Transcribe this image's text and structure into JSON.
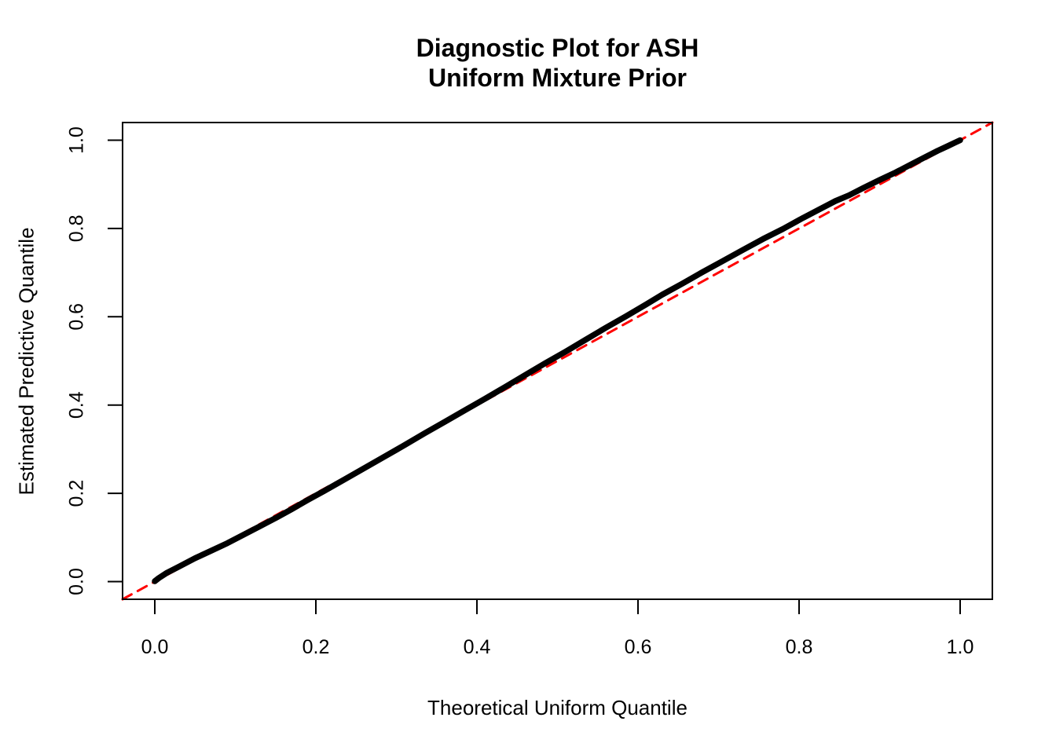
{
  "figure": {
    "title_line1": "Diagnostic Plot for ASH",
    "title_line2": "Uniform Mixture Prior"
  },
  "chart_data": {
    "type": "line",
    "title": "Diagnostic Plot for ASH\nUniform Mixture Prior",
    "xlabel": "Theoretical Uniform Quantile",
    "ylabel": "Estimated Predictive Quantile",
    "xlim": [
      -0.04,
      1.04
    ],
    "ylim": [
      -0.04,
      1.04
    ],
    "x_ticks": [
      0.0,
      0.2,
      0.4,
      0.6,
      0.8,
      1.0
    ],
    "y_ticks": [
      0.0,
      0.2,
      0.4,
      0.6,
      0.8,
      1.0
    ],
    "x_tick_labels": [
      "0.0",
      "0.2",
      "0.4",
      "0.6",
      "0.8",
      "1.0"
    ],
    "y_tick_labels": [
      "0.0",
      "0.2",
      "0.4",
      "0.6",
      "0.8",
      "1.0"
    ],
    "grid": false,
    "legend": null,
    "colors": {
      "background": "#FFFFFF",
      "axis": "#000000",
      "curve": "#000000",
      "reference": "#FF0000"
    },
    "series": [
      {
        "name": "estimated-vs-theoretical-quantile-curve",
        "type": "line",
        "color": "#000000",
        "line_width": 7.5,
        "dash": null,
        "points": [
          [
            0.0,
            0.001
          ],
          [
            0.005,
            0.008
          ],
          [
            0.015,
            0.02
          ],
          [
            0.03,
            0.034
          ],
          [
            0.05,
            0.053
          ],
          [
            0.07,
            0.07
          ],
          [
            0.09,
            0.087
          ],
          [
            0.11,
            0.106
          ],
          [
            0.13,
            0.125
          ],
          [
            0.15,
            0.144
          ],
          [
            0.17,
            0.164
          ],
          [
            0.19,
            0.185
          ],
          [
            0.21,
            0.205
          ],
          [
            0.235,
            0.231
          ],
          [
            0.26,
            0.257
          ],
          [
            0.285,
            0.283
          ],
          [
            0.31,
            0.309
          ],
          [
            0.335,
            0.336
          ],
          [
            0.36,
            0.362
          ],
          [
            0.385,
            0.388
          ],
          [
            0.41,
            0.414
          ],
          [
            0.435,
            0.441
          ],
          [
            0.46,
            0.468
          ],
          [
            0.485,
            0.495
          ],
          [
            0.51,
            0.521
          ],
          [
            0.535,
            0.548
          ],
          [
            0.56,
            0.575
          ],
          [
            0.585,
            0.601
          ],
          [
            0.61,
            0.628
          ],
          [
            0.63,
            0.65
          ],
          [
            0.655,
            0.675
          ],
          [
            0.68,
            0.701
          ],
          [
            0.705,
            0.726
          ],
          [
            0.73,
            0.751
          ],
          [
            0.755,
            0.776
          ],
          [
            0.78,
            0.799
          ],
          [
            0.805,
            0.824
          ],
          [
            0.825,
            0.843
          ],
          [
            0.845,
            0.862
          ],
          [
            0.862,
            0.875
          ],
          [
            0.88,
            0.892
          ],
          [
            0.9,
            0.91
          ],
          [
            0.92,
            0.927
          ],
          [
            0.94,
            0.946
          ],
          [
            0.958,
            0.963
          ],
          [
            0.972,
            0.976
          ],
          [
            0.985,
            0.987
          ],
          [
            0.993,
            0.994
          ],
          [
            1.0,
            1.0
          ]
        ]
      },
      {
        "name": "identity-reference-line",
        "type": "line",
        "color": "#FF0000",
        "line_width": 3,
        "dash": [
          13,
          9
        ],
        "points": [
          [
            -0.04,
            -0.04
          ],
          [
            1.04,
            1.04
          ]
        ]
      }
    ]
  }
}
